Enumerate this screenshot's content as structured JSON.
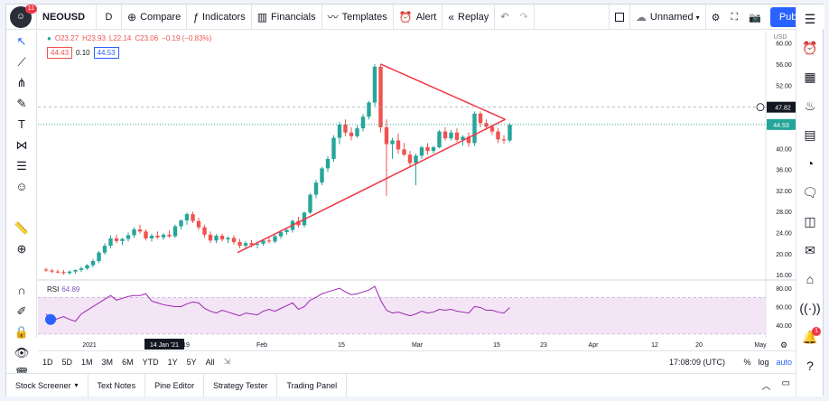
{
  "toolbar": {
    "avatar_badge": "11",
    "symbol": "NEOUSD",
    "interval": "D",
    "compare": "Compare",
    "indicators": "Indicators",
    "financials": "Financials",
    "templates": "Templates",
    "alert": "Alert",
    "replay": "Replay",
    "layout_name": "Unnamed",
    "publish": "Publish"
  },
  "legend": {
    "open": "O23.27",
    "high": "H23.93",
    "low": "L22.14",
    "close": "C23.06",
    "change": "−0.19 (−0.83%)",
    "sell_price": "44.43",
    "spread": "0.10",
    "buy_price": "44.53"
  },
  "price_axis": {
    "currency": "USD",
    "ticks": [
      "60.00",
      "56.00",
      "52.00",
      "48.00",
      "44.00",
      "40.00",
      "36.00",
      "32.00",
      "28.00",
      "24.00",
      "20.00",
      "16.00"
    ],
    "crosshair_label": "47.82",
    "last_price_label": "44.53"
  },
  "rsi": {
    "label": "RSI",
    "value": "64.89",
    "ticks": [
      "80.00",
      "60.00",
      "40.00"
    ]
  },
  "time_axis": {
    "ticks": [
      "2021",
      "19",
      "Feb",
      "15",
      "Mar",
      "15",
      "23",
      "Apr",
      "12",
      "20",
      "May"
    ],
    "highlight": "14 Jan '21"
  },
  "timeframes": [
    "1D",
    "5D",
    "1M",
    "3M",
    "6M",
    "YTD",
    "1Y",
    "5Y",
    "All"
  ],
  "clock": "17:08:09 (UTC)",
  "axis_opts": [
    "%",
    "log",
    "auto"
  ],
  "panels": [
    "Stock Screener",
    "Text Notes",
    "Pine Editor",
    "Strategy Tester",
    "Trading Panel"
  ],
  "colors": {
    "up": "#26a69a",
    "down": "#ef5350",
    "triangle": "#f23645",
    "rsi_line": "#9c27b0",
    "rsi_band": "#f3e5f5",
    "accent": "#2962ff"
  },
  "chart_data": {
    "type": "candlestick",
    "y_range": [
      15,
      62
    ],
    "candles": [
      [
        17.0,
        17.3,
        16.5,
        16.8
      ],
      [
        16.8,
        17.1,
        16.3,
        16.6
      ],
      [
        16.6,
        17.0,
        16.2,
        16.5
      ],
      [
        16.5,
        16.9,
        16.0,
        16.3
      ],
      [
        16.3,
        16.8,
        16.0,
        16.6
      ],
      [
        16.6,
        17.0,
        16.2,
        16.9
      ],
      [
        16.9,
        17.5,
        16.5,
        17.2
      ],
      [
        17.2,
        18.0,
        16.9,
        17.8
      ],
      [
        17.8,
        19.0,
        17.4,
        18.6
      ],
      [
        18.6,
        20.5,
        18.2,
        20.2
      ],
      [
        20.2,
        22.0,
        19.8,
        21.5
      ],
      [
        21.5,
        23.5,
        21.0,
        22.9
      ],
      [
        22.9,
        23.6,
        22.0,
        22.4
      ],
      [
        22.4,
        23.0,
        21.6,
        22.8
      ],
      [
        22.8,
        24.0,
        22.3,
        23.5
      ],
      [
        23.5,
        25.0,
        23.0,
        24.6
      ],
      [
        24.6,
        25.5,
        23.8,
        24.2
      ],
      [
        24.2,
        24.6,
        22.5,
        22.9
      ],
      [
        22.9,
        23.8,
        22.3,
        23.4
      ],
      [
        23.4,
        24.2,
        22.8,
        23.1
      ],
      [
        23.1,
        23.9,
        22.6,
        23.6
      ],
      [
        23.6,
        24.4,
        23.0,
        23.3
      ],
      [
        23.3,
        25.5,
        23.0,
        25.2
      ],
      [
        25.2,
        26.5,
        24.6,
        26.3
      ],
      [
        26.3,
        27.8,
        25.5,
        27.5
      ],
      [
        27.5,
        28.0,
        25.8,
        26.2
      ],
      [
        26.2,
        26.8,
        24.5,
        25.0
      ],
      [
        25.0,
        25.5,
        23.0,
        23.6
      ],
      [
        23.6,
        24.2,
        22.0,
        22.5
      ],
      [
        22.5,
        23.7,
        22.0,
        23.4
      ],
      [
        23.4,
        23.8,
        22.3,
        22.7
      ],
      [
        22.7,
        23.3,
        22.0,
        23.0
      ],
      [
        23.0,
        23.5,
        21.8,
        22.2
      ],
      [
        22.2,
        22.8,
        21.0,
        21.5
      ],
      [
        21.5,
        22.4,
        20.8,
        22.0
      ],
      [
        22.0,
        22.6,
        21.2,
        21.7
      ],
      [
        21.7,
        22.3,
        21.0,
        21.9
      ],
      [
        21.9,
        22.8,
        21.5,
        22.5
      ],
      [
        22.5,
        23.2,
        22.0,
        22.3
      ],
      [
        22.3,
        23.6,
        22.0,
        23.3
      ],
      [
        23.3,
        24.4,
        22.8,
        24.1
      ],
      [
        24.1,
        25.0,
        23.6,
        24.5
      ],
      [
        24.5,
        26.5,
        24.0,
        26.2
      ],
      [
        26.2,
        27.0,
        25.0,
        25.4
      ],
      [
        25.4,
        28.0,
        25.0,
        27.8
      ],
      [
        27.8,
        31.5,
        27.5,
        31.2
      ],
      [
        31.2,
        34.0,
        30.5,
        33.5
      ],
      [
        33.5,
        36.5,
        33.0,
        36.2
      ],
      [
        36.2,
        38.5,
        35.5,
        38.0
      ],
      [
        38.0,
        42.5,
        37.5,
        42.0
      ],
      [
        42.0,
        45.0,
        40.8,
        44.5
      ],
      [
        44.5,
        45.5,
        42.3,
        43.0
      ],
      [
        43.0,
        44.0,
        41.5,
        42.3
      ],
      [
        42.3,
        44.4,
        42.0,
        43.8
      ],
      [
        43.8,
        46.5,
        43.2,
        46.0
      ],
      [
        46.0,
        49.0,
        45.5,
        48.7
      ],
      [
        48.7,
        56.0,
        48.0,
        55.5
      ],
      [
        55.5,
        56.0,
        43.0,
        44.0
      ],
      [
        44.0,
        45.5,
        31.0,
        40.8
      ],
      [
        40.8,
        42.0,
        38.0,
        41.5
      ],
      [
        41.5,
        42.8,
        39.0,
        39.8
      ],
      [
        39.8,
        41.0,
        38.5,
        38.8
      ],
      [
        38.8,
        39.5,
        36.5,
        37.2
      ],
      [
        37.2,
        39.0,
        33.0,
        38.6
      ],
      [
        38.6,
        40.5,
        38.0,
        40.2
      ],
      [
        40.2,
        41.0,
        38.8,
        39.5
      ],
      [
        39.5,
        40.5,
        39.0,
        40.2
      ],
      [
        40.2,
        43.5,
        40.0,
        43.2
      ],
      [
        43.2,
        44.0,
        41.5,
        41.9
      ],
      [
        41.9,
        43.5,
        41.5,
        43.0
      ],
      [
        43.0,
        43.8,
        41.2,
        41.6
      ],
      [
        41.6,
        42.5,
        40.5,
        42.2
      ],
      [
        42.2,
        43.0,
        40.3,
        41.0
      ],
      [
        41.0,
        47.0,
        40.5,
        46.6
      ],
      [
        46.6,
        47.0,
        44.0,
        44.8
      ],
      [
        44.8,
        45.5,
        43.5,
        44.1
      ],
      [
        44.1,
        44.5,
        42.5,
        43.2
      ],
      [
        43.2,
        43.8,
        41.0,
        41.7
      ],
      [
        41.7,
        42.5,
        40.9,
        41.5
      ],
      [
        41.5,
        44.8,
        41.2,
        44.5
      ]
    ],
    "rsi": [
      52,
      44,
      47,
      49,
      46,
      44,
      52,
      56,
      60,
      64,
      68,
      72,
      67,
      69,
      71,
      72,
      72,
      74,
      66,
      64,
      62,
      61,
      60,
      60,
      63,
      65,
      64,
      58,
      55,
      53,
      56,
      54,
      52,
      50,
      53,
      52,
      51,
      55,
      57,
      55,
      58,
      61,
      64,
      57,
      60,
      67,
      70,
      74,
      76,
      78,
      80,
      76,
      73,
      74,
      76,
      78,
      82,
      67,
      56,
      53,
      54,
      52,
      50,
      52,
      55,
      53,
      54,
      57,
      56,
      57,
      55,
      54,
      53,
      60,
      59,
      56,
      56,
      54,
      53,
      59
    ],
    "triangle": {
      "apex": [
        69,
        45.5
      ],
      "upper_start": [
        49,
        56.0
      ],
      "lower_start": [
        28,
        20.2
      ]
    }
  }
}
